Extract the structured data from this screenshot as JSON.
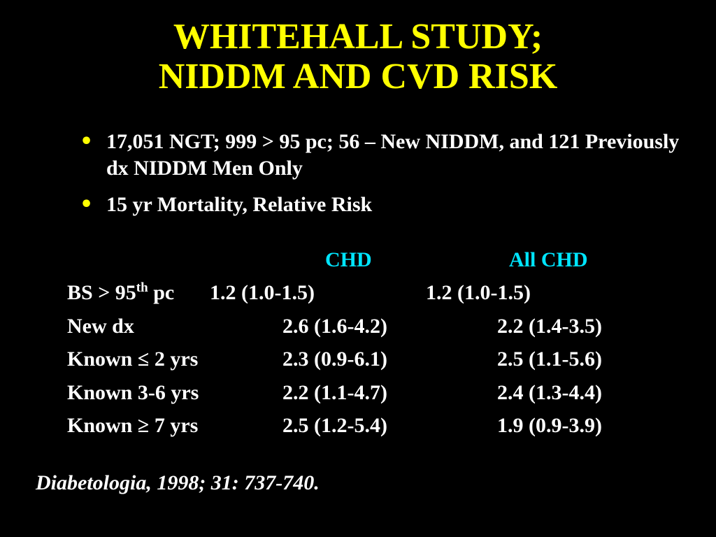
{
  "title": {
    "line1": "WHITEHALL STUDY;",
    "line2": "NIDDM AND CVD RISK"
  },
  "bullets": [
    "17,051 NGT; 999 > 95 pc; 56 – New NIDDM, and 121 Previously dx NIDDM Men Only",
    "15 yr Mortality, Relative Risk"
  ],
  "table": {
    "headers": [
      "CHD",
      "All CHD"
    ],
    "rows": [
      {
        "label_pre": "BS > 95",
        "label_sup": "th",
        "label_post": " pc",
        "chd": "1.2 (1.0-1.5)",
        "all_chd": "1.2 (1.0-1.5)"
      },
      {
        "label_pre": "New dx",
        "chd": "2.6 (1.6-4.2)",
        "all_chd": "2.2 (1.4-3.5)"
      },
      {
        "label_pre": "Known ≤ 2 yrs",
        "chd": "2.3 (0.9-6.1)",
        "all_chd": "2.5 (1.1-5.6)"
      },
      {
        "label_pre": "Known 3-6 yrs",
        "chd": "2.2 (1.1-4.7)",
        "all_chd": "2.4 (1.3-4.4)"
      },
      {
        "label_pre": "Known ≥ 7 yrs",
        "chd": "2.5 (1.2-5.4)",
        "all_chd": "1.9 (0.9-3.9)"
      }
    ]
  },
  "citation": "Diabetologia, 1998; 31: 737-740.",
  "colors": {
    "background": "#000000",
    "title": "#ffff00",
    "bullet": "#ffff00",
    "header": "#00e5ff",
    "text": "#ffffff"
  }
}
